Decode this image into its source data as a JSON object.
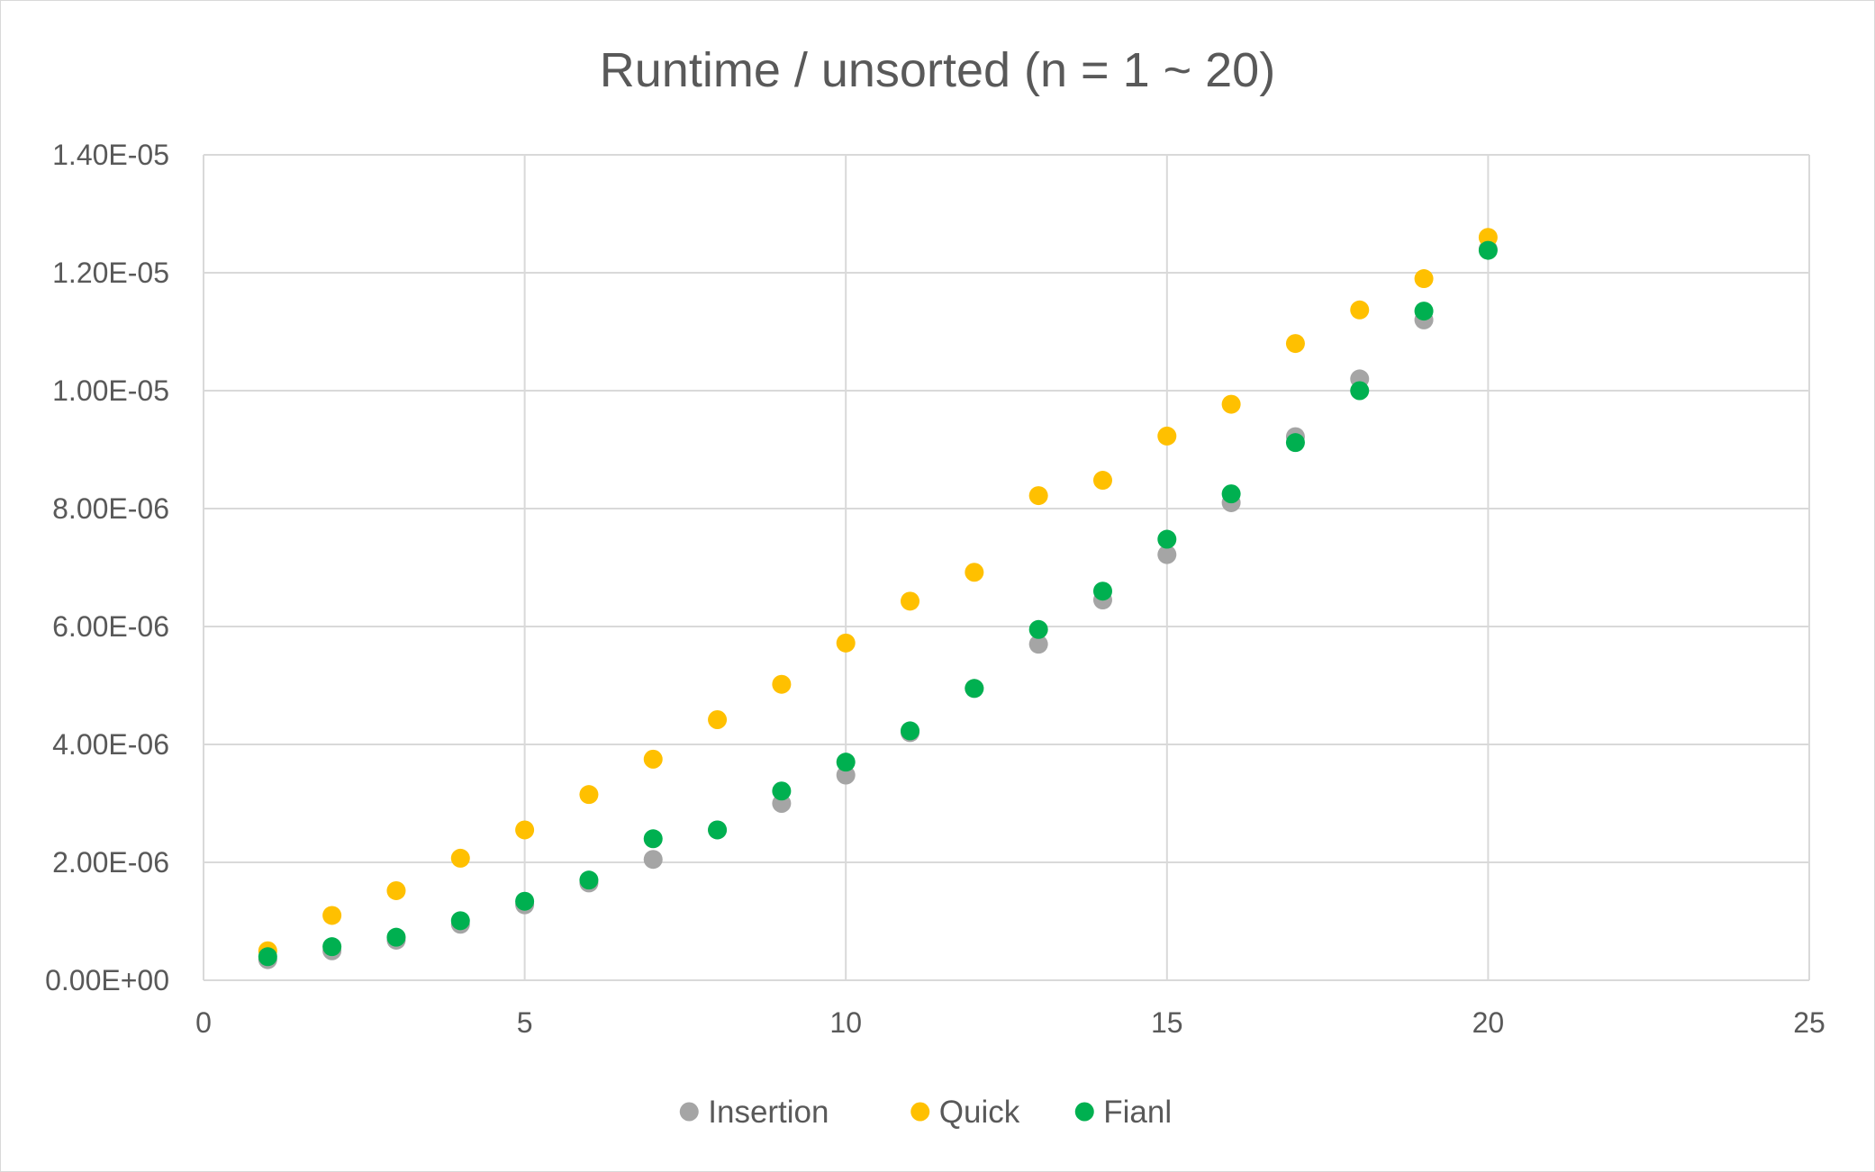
{
  "chart_data": {
    "type": "scatter",
    "title": "Runtime / unsorted (n = 1 ~ 20)",
    "xlabel": "",
    "ylabel": "",
    "xlim": [
      0,
      25
    ],
    "ylim": [
      0,
      1.4e-05
    ],
    "x_ticks": [
      0,
      5,
      10,
      15,
      20,
      25
    ],
    "x_tick_labels": [
      "0",
      "5",
      "10",
      "15",
      "20",
      "25"
    ],
    "y_ticks": [
      0,
      2e-06,
      4e-06,
      6e-06,
      8e-06,
      1e-05,
      1.2e-05,
      1.4e-05
    ],
    "y_tick_labels": [
      "0.00E+00",
      "2.00E-06",
      "4.00E-06",
      "6.00E-06",
      "8.00E-06",
      "1.00E-05",
      "1.20E-05",
      "1.40E-05"
    ],
    "grid": true,
    "legend_position": "bottom",
    "x": [
      1,
      2,
      3,
      4,
      5,
      6,
      7,
      8,
      9,
      10,
      11,
      12,
      13,
      14,
      15,
      16,
      17,
      18,
      19,
      20
    ],
    "series": [
      {
        "name": "Insertion",
        "color": "#a5a5a5",
        "values": [
          3.5e-07,
          5e-07,
          6.8e-07,
          9.5e-07,
          1.28e-06,
          1.65e-06,
          2.05e-06,
          2.55e-06,
          3e-06,
          3.48e-06,
          4.2e-06,
          4.95e-06,
          5.7e-06,
          6.45e-06,
          7.22e-06,
          8.1e-06,
          9.22e-06,
          1.02e-05,
          1.12e-05,
          1.24e-05
        ]
      },
      {
        "name": "Quick",
        "color": "#ffc000",
        "values": [
          5e-07,
          1.1e-06,
          1.52e-06,
          2.07e-06,
          2.55e-06,
          3.15e-06,
          3.75e-06,
          4.42e-06,
          5.02e-06,
          5.72e-06,
          6.43e-06,
          6.92e-06,
          8.22e-06,
          8.48e-06,
          9.23e-06,
          9.77e-06,
          1.08e-05,
          1.137e-05,
          1.19e-05,
          1.26e-05
        ]
      },
      {
        "name": "Fianl",
        "color": "#00b050",
        "values": [
          4e-07,
          5.7e-07,
          7.3e-07,
          1.01e-06,
          1.34e-06,
          1.7e-06,
          2.4e-06,
          2.55e-06,
          3.21e-06,
          3.7e-06,
          4.23e-06,
          4.95e-06,
          5.95e-06,
          6.6e-06,
          7.48e-06,
          8.25e-06,
          9.12e-06,
          1e-05,
          1.135e-05,
          1.238e-05
        ]
      }
    ]
  }
}
